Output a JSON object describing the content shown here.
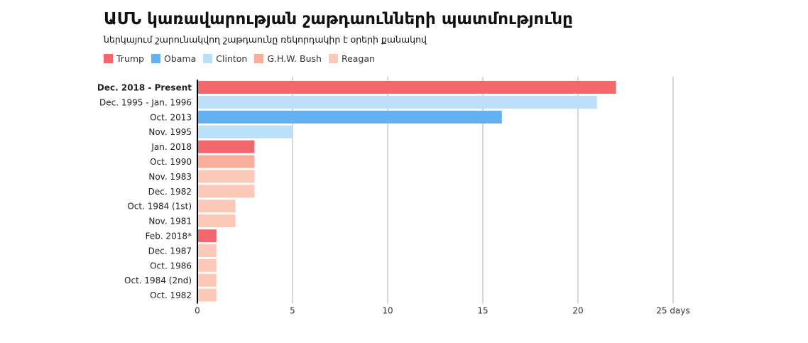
{
  "chart_data": {
    "type": "bar",
    "orientation": "horizontal",
    "title": "ԱՄՆ կառավարության շաթդաունների պատմությունը",
    "subtitle": "ներկայում շարունակվող շաթդաունը ռեկորդակիր է օրերի քանակով",
    "xlabel": "",
    "ylabel": "",
    "x_unit": "days",
    "xlim": [
      0,
      25
    ],
    "xticks": [
      0,
      5,
      10,
      15,
      20,
      25
    ],
    "xtick_labels": [
      "0",
      "5",
      "10",
      "15",
      "20",
      "25 days"
    ],
    "grid": "vertical",
    "legend_position": "top-left",
    "legend": [
      {
        "name": "Trump",
        "color": "#f4676d"
      },
      {
        "name": "Obama",
        "color": "#63b1f2"
      },
      {
        "name": "Clinton",
        "color": "#bbdff9"
      },
      {
        "name": "G.H.W. Bush",
        "color": "#f8ae9a"
      },
      {
        "name": "Reagan",
        "color": "#fcc9b9"
      }
    ],
    "bars": [
      {
        "label": "Dec. 2018 - Present",
        "value": 22,
        "president": "Trump",
        "highlight": true
      },
      {
        "label": "Dec. 1995 - Jan. 1996",
        "value": 21,
        "president": "Clinton"
      },
      {
        "label": "Oct. 2013",
        "value": 16,
        "president": "Obama"
      },
      {
        "label": "Nov. 1995",
        "value": 5,
        "president": "Clinton"
      },
      {
        "label": "Jan. 2018",
        "value": 3,
        "president": "Trump"
      },
      {
        "label": "Oct. 1990",
        "value": 3,
        "president": "G.H.W. Bush"
      },
      {
        "label": "Nov. 1983",
        "value": 3,
        "president": "Reagan"
      },
      {
        "label": "Dec. 1982",
        "value": 3,
        "president": "Reagan"
      },
      {
        "label": "Oct. 1984 (1st)",
        "value": 2,
        "president": "Reagan"
      },
      {
        "label": "Nov. 1981",
        "value": 2,
        "president": "Reagan"
      },
      {
        "label": "Feb. 2018*",
        "value": 1,
        "president": "Trump"
      },
      {
        "label": "Dec. 1987",
        "value": 1,
        "president": "Reagan"
      },
      {
        "label": "Oct. 1986",
        "value": 1,
        "president": "Reagan"
      },
      {
        "label": "Oct. 1984 (2nd)",
        "value": 1,
        "president": "Reagan"
      },
      {
        "label": "Oct. 1982",
        "value": 1,
        "president": "Reagan"
      }
    ]
  }
}
